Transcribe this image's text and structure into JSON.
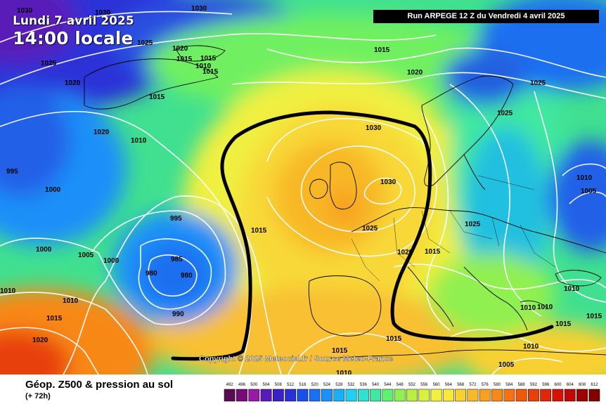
{
  "header": {
    "date_line": "Lundi 7 avril 2025",
    "time_line": "14:00 locale",
    "run_info": "Run ARPEGE 12 Z du Vendredi 4 avril 2025"
  },
  "footer": {
    "parameter_title": "Géop. Z500 & pression au sol",
    "lead_time": "(+ 72h)",
    "copyright": "Copyright © 2025 Meteociel.fr / Source Meteo-France"
  },
  "legend": {
    "scale_values": [
      "492",
      "496",
      "500",
      "504",
      "508",
      "512",
      "516",
      "520",
      "524",
      "528",
      "532",
      "536",
      "540",
      "544",
      "548",
      "552",
      "556",
      "560",
      "564",
      "568",
      "572",
      "576",
      "580",
      "584",
      "588",
      "592",
      "596",
      "600",
      "604",
      "608",
      "612"
    ],
    "scale_colors": [
      "#5a0a50",
      "#7a0a7a",
      "#9a1aa8",
      "#5a1ab8",
      "#3a20c8",
      "#2a30d8",
      "#1a50e8",
      "#1a70f0",
      "#1a90f8",
      "#1ab0f8",
      "#20d0f0",
      "#30e0d0",
      "#40e8a0",
      "#60f070",
      "#90f050",
      "#b8f040",
      "#d8f040",
      "#f0f040",
      "#f8e838",
      "#f8d030",
      "#f8b828",
      "#f8a020",
      "#f88818",
      "#f87010",
      "#f05808",
      "#e84008",
      "#e02808",
      "#d81008",
      "#c00808",
      "#a00000",
      "#800000"
    ]
  },
  "isobar_labels": [
    {
      "text": "1030",
      "near": "top-left"
    },
    {
      "text": "1030",
      "near": "top-left"
    },
    {
      "text": "1030",
      "near": "top-center"
    },
    {
      "text": "1025",
      "near": "top-left"
    },
    {
      "text": "1020",
      "near": "iceland"
    },
    {
      "text": "1015",
      "near": "iceland"
    },
    {
      "text": "1015",
      "near": "iceland"
    },
    {
      "text": "1010",
      "near": "iceland"
    },
    {
      "text": "1015",
      "near": "iceland"
    },
    {
      "text": "1025",
      "near": "left"
    },
    {
      "text": "1020",
      "near": "left"
    },
    {
      "text": "1015",
      "near": "greenland"
    },
    {
      "text": "1020",
      "near": "greenland"
    },
    {
      "text": "1010",
      "near": "atlantic"
    },
    {
      "text": "995",
      "near": "left"
    },
    {
      "text": "1000",
      "near": "left"
    },
    {
      "text": "995",
      "near": "atlantic"
    },
    {
      "text": "1000",
      "near": "left"
    },
    {
      "text": "1005",
      "near": "atlantic"
    },
    {
      "text": "1000",
      "near": "atlantic"
    },
    {
      "text": "985",
      "near": "low-center"
    },
    {
      "text": "980",
      "near": "low-center"
    },
    {
      "text": "980",
      "near": "low-center"
    },
    {
      "text": "990",
      "near": "low-center"
    },
    {
      "text": "1010",
      "near": "left"
    },
    {
      "text": "1010",
      "near": "left"
    },
    {
      "text": "1015",
      "near": "left"
    },
    {
      "text": "1020",
      "near": "bottom-left"
    },
    {
      "text": "1015",
      "near": "north-sea"
    },
    {
      "text": "1015",
      "near": "iberia"
    },
    {
      "text": "1030",
      "near": "north-sea"
    },
    {
      "text": "1030",
      "near": "uk"
    },
    {
      "text": "1025",
      "near": "france"
    },
    {
      "text": "1015",
      "near": "norway"
    },
    {
      "text": "1020",
      "near": "norway"
    },
    {
      "text": "1025",
      "near": "scandinavia"
    },
    {
      "text": "1025",
      "near": "russia"
    },
    {
      "text": "1025",
      "near": "poland"
    },
    {
      "text": "1010",
      "near": "east"
    },
    {
      "text": "1005",
      "near": "east"
    },
    {
      "text": "1020",
      "near": "germany"
    },
    {
      "text": "1015",
      "near": "central-europe"
    },
    {
      "text": "1015",
      "near": "spain"
    },
    {
      "text": "1015",
      "near": "spain"
    },
    {
      "text": "1010",
      "near": "mediterranean"
    },
    {
      "text": "1010",
      "near": "balkans"
    },
    {
      "text": "1010",
      "near": "greece"
    },
    {
      "text": "1015",
      "near": "turkey"
    },
    {
      "text": "1015",
      "near": "turkey"
    },
    {
      "text": "1010",
      "near": "bottom-right"
    },
    {
      "text": "1005",
      "near": "bottom-right"
    },
    {
      "text": "1010",
      "near": "turkey"
    }
  ]
}
